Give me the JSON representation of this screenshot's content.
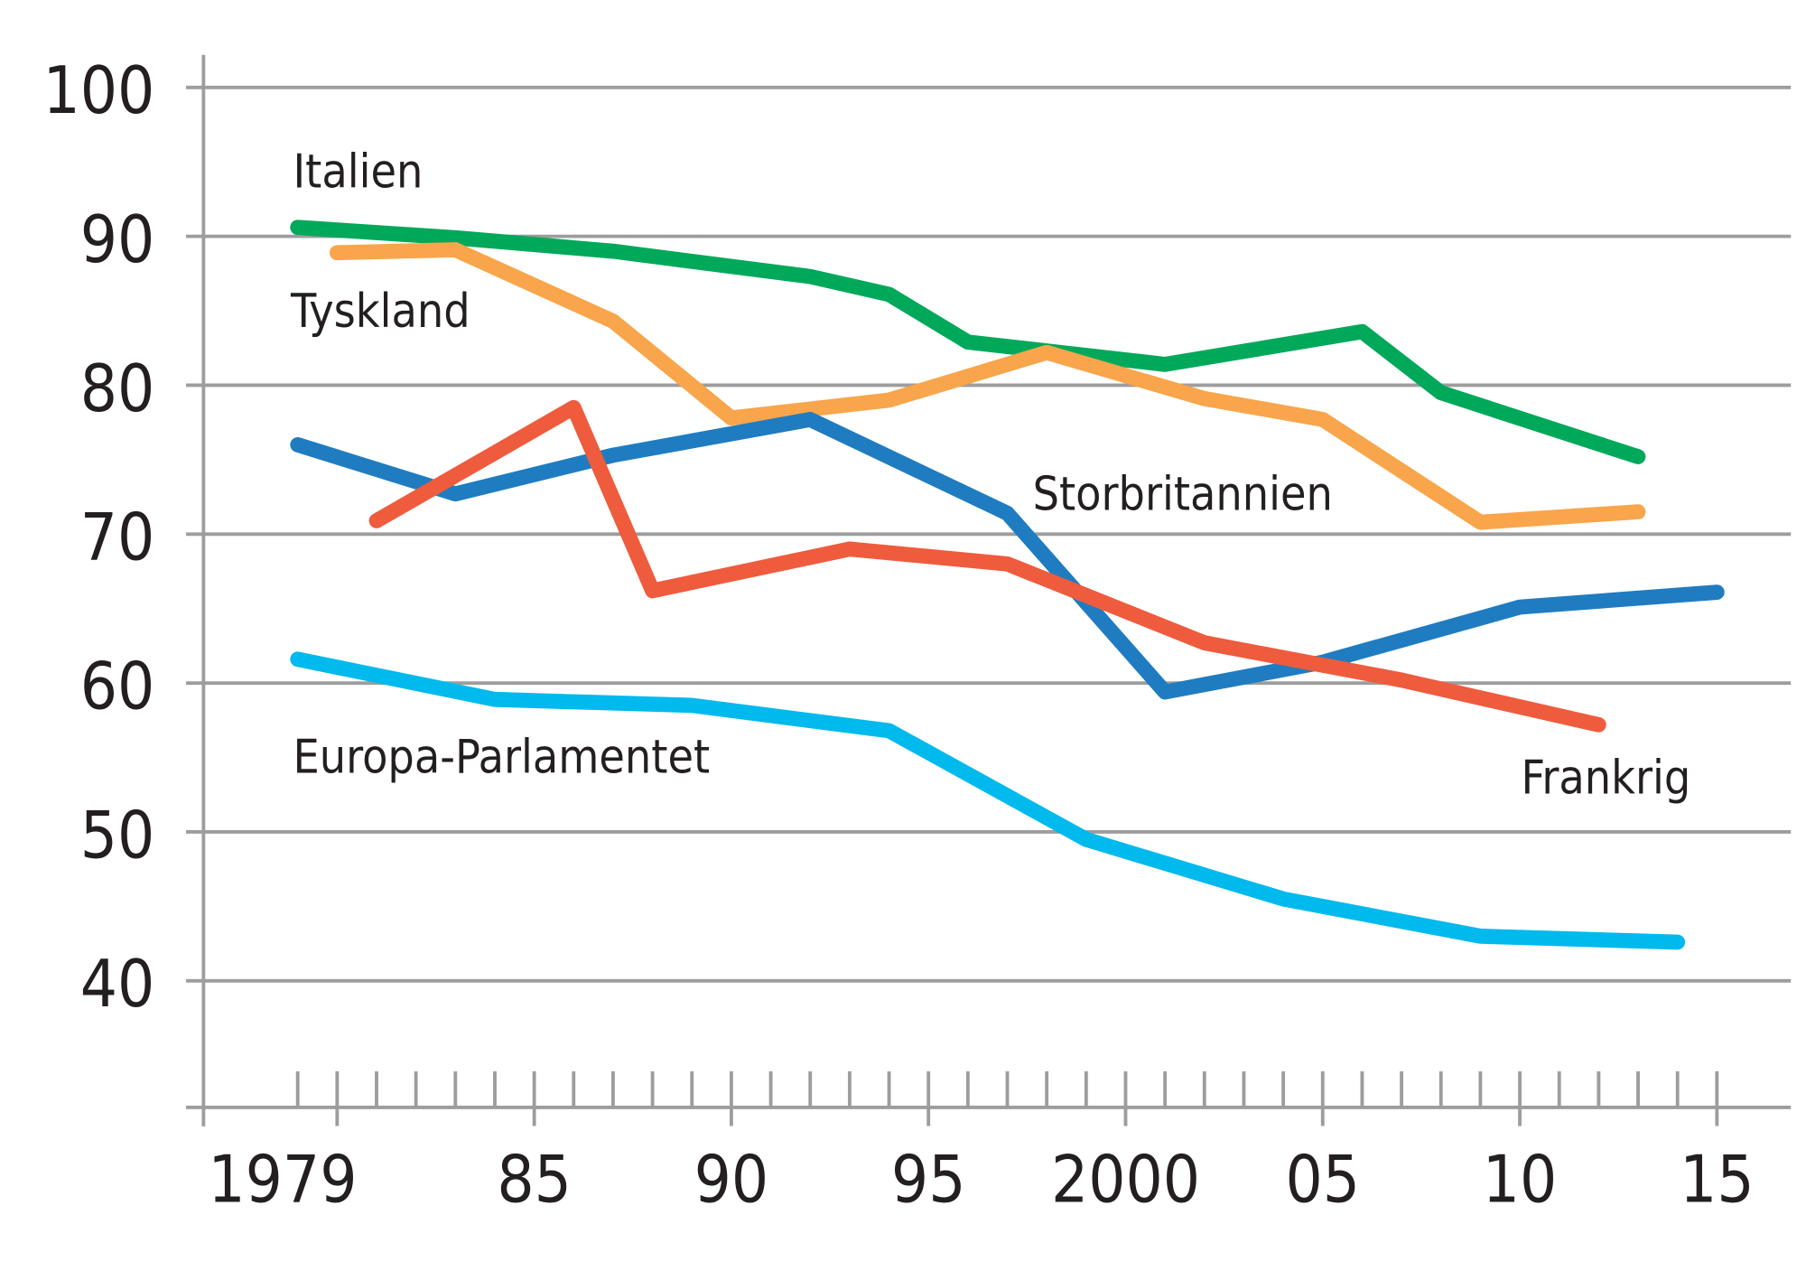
{
  "chart_data": {
    "type": "line",
    "title": "",
    "xlabel": "",
    "ylabel": "",
    "xlim": [
      1979,
      2015
    ],
    "ylim": [
      31.5,
      100
    ],
    "grid": true,
    "y_ticks": [
      40,
      50,
      60,
      70,
      80,
      90,
      100
    ],
    "y_tick_labels": [
      "40",
      "50",
      "60",
      "70",
      "80",
      "90",
      "100"
    ],
    "x_ticks": [
      1979,
      1985,
      1990,
      1995,
      2000,
      2005,
      2010,
      2015
    ],
    "x_tick_labels": [
      "1979",
      "85",
      "90",
      "95",
      "2000",
      "05",
      "10",
      "15"
    ],
    "series": [
      {
        "name": "Italien",
        "color": "#00a85a",
        "x": [
          1979,
          1983,
          1987,
          1992,
          1994,
          1996,
          2001,
          2006,
          2008,
          2013
        ],
        "y": [
          90.6,
          89.9,
          89.0,
          87.3,
          86.1,
          82.9,
          81.4,
          83.6,
          79.5,
          75.2
        ]
      },
      {
        "name": "Tyskland",
        "color": "#f9a54b",
        "x": [
          1980,
          1983,
          1987,
          1990,
          1994,
          1998,
          2002,
          2005,
          2009,
          2013
        ],
        "y": [
          88.9,
          89.1,
          84.3,
          77.8,
          79.0,
          82.2,
          79.1,
          77.7,
          70.8,
          71.5
        ]
      },
      {
        "name": "Storbritannien",
        "color": "#1f7cc1",
        "x": [
          1979,
          1983,
          1987,
          1992,
          1997,
          2001,
          2005,
          2010,
          2015
        ],
        "y": [
          76.0,
          72.7,
          75.3,
          77.7,
          71.4,
          59.4,
          61.4,
          65.1,
          66.1
        ]
      },
      {
        "name": "Frankrig",
        "color": "#ef5b3d",
        "x": [
          1981,
          1986,
          1988,
          1993,
          1997,
          2002,
          2007,
          2012
        ],
        "y": [
          70.9,
          78.5,
          66.2,
          69.0,
          68.0,
          62.7,
          60.2,
          57.2
        ]
      },
      {
        "name": "Europa-Parlamentet",
        "color": "#00b9ed",
        "x": [
          1979,
          1984,
          1989,
          1994,
          1999,
          2004,
          2009,
          2014
        ],
        "y": [
          61.6,
          58.9,
          58.5,
          56.8,
          49.5,
          45.5,
          43.0,
          42.6
        ]
      }
    ]
  }
}
